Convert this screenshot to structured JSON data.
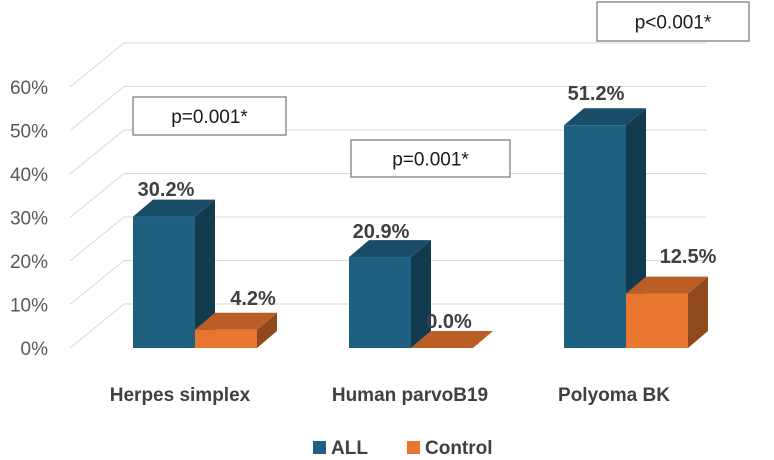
{
  "chart_data": {
    "type": "bar",
    "title": "",
    "xlabel": "",
    "ylabel": "",
    "categories": [
      "Herpes simplex",
      "Human parvoB19",
      "Polyoma BK"
    ],
    "series": [
      {
        "name": "ALL",
        "values": [
          30.2,
          20.9,
          51.2
        ],
        "labels": [
          "30.2%",
          "20.9%",
          "51.2%"
        ],
        "color": "#1f5f7f"
      },
      {
        "name": "Control",
        "values": [
          4.2,
          0.0,
          12.5
        ],
        "labels": [
          "4.2%",
          "0.0%",
          "12.5%"
        ],
        "color": "#e8762f"
      }
    ],
    "ylim": [
      0,
      60
    ],
    "yticks": [
      0,
      10,
      20,
      30,
      40,
      50,
      60
    ],
    "ytick_labels": [
      "0%",
      "10%",
      "20%",
      "30%",
      "40%",
      "50%",
      "60%"
    ],
    "gridlines": true,
    "style": "3d-clustered-column",
    "legend_position": "bottom",
    "annotations": [
      "p=0.001*",
      "p=0.001*",
      "p<0.001*"
    ]
  }
}
